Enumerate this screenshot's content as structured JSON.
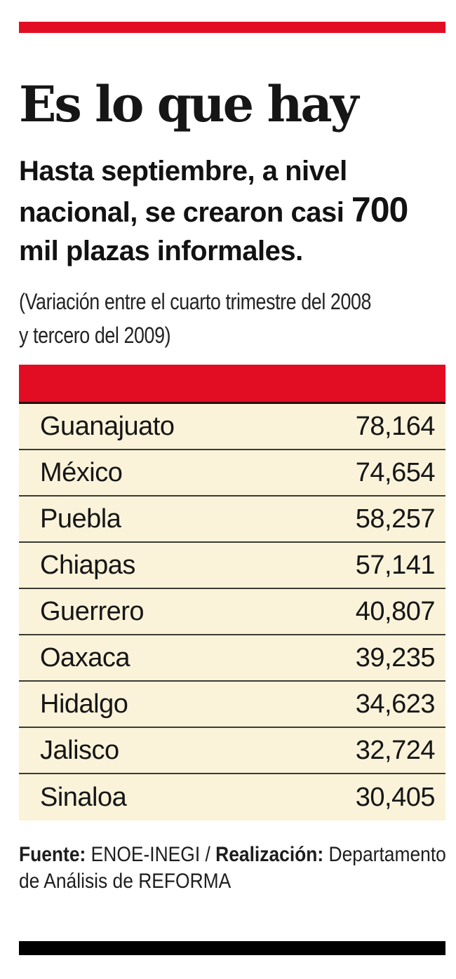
{
  "title": "Es lo que hay",
  "subtitle": {
    "line1": "Hasta septiembre, a nivel",
    "line2a": "nacional, se crearon casi ",
    "line2b": "700",
    "line3": "mil plazas informales."
  },
  "note": {
    "line1": "(Variación entre el cuarto trimestre del 2008",
    "line2": "y tercero del 2009)"
  },
  "table": {
    "rows": [
      {
        "state": "Guanajuato",
        "value": "78,164"
      },
      {
        "state": "México",
        "value": "74,654"
      },
      {
        "state": "Puebla",
        "value": "58,257"
      },
      {
        "state": "Chiapas",
        "value": "57,141"
      },
      {
        "state": "Guerrero",
        "value": "40,807"
      },
      {
        "state": "Oaxaca",
        "value": "39,235"
      },
      {
        "state": "Hidalgo",
        "value": "34,623"
      },
      {
        "state": "Jalisco",
        "value": "32,724"
      },
      {
        "state": "Sinaloa",
        "value": "30,405"
      }
    ]
  },
  "footer": {
    "source_label": "Fuente:",
    "source_text": " ENOE-INEGI / ",
    "credit_label": "Realización:",
    "credit_text_line1": " Departamento",
    "credit_line2": "de Análisis de REFORMA"
  },
  "colors": {
    "accent": "#e20d23",
    "table_bg": "#faf3da",
    "rule": "#3b3b33",
    "bar_black": "#000000"
  },
  "chart_data": {
    "type": "table",
    "title": "Es lo que hay",
    "subtitle": "Hasta septiembre, a nivel nacional, se crearon casi 700 mil plazas informales.",
    "note": "(Variación entre el cuarto trimestre del 2008 y tercero del 2009)",
    "categories": [
      "Guanajuato",
      "México",
      "Puebla",
      "Chiapas",
      "Guerrero",
      "Oaxaca",
      "Hidalgo",
      "Jalisco",
      "Sinaloa"
    ],
    "values": [
      78164,
      74654,
      58257,
      57141,
      40807,
      39235,
      34623,
      32724,
      30405
    ],
    "legend_position": "none",
    "source": "Fuente: ENOE-INEGI / Realización: Departamento de Análisis de REFORMA"
  }
}
